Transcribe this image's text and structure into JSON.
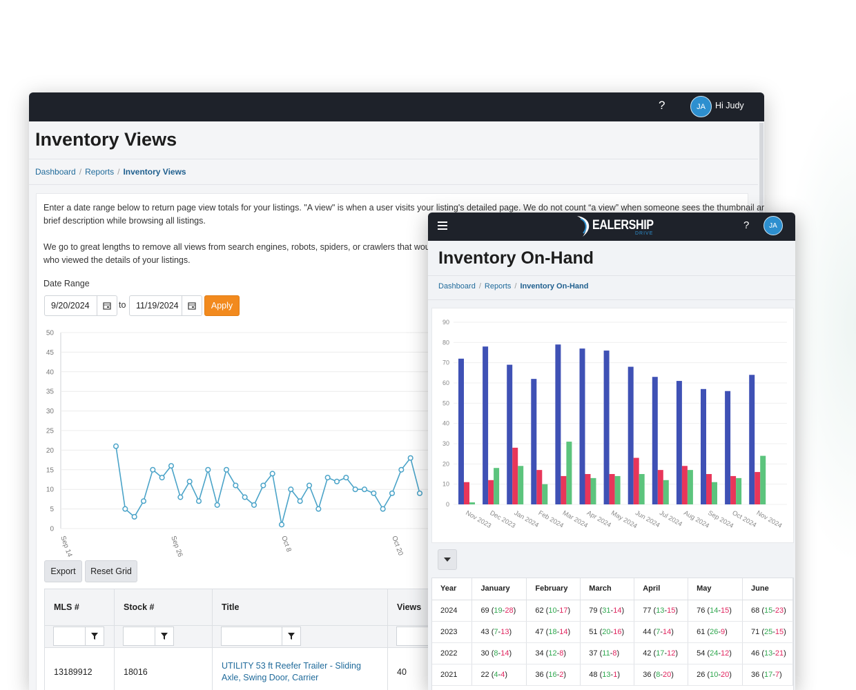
{
  "back_window": {
    "help": "?",
    "avatar": "JA",
    "greeting": "Hi Judy",
    "title": "Inventory Views",
    "breadcrumb": [
      "Dashboard",
      "Reports",
      "Inventory Views"
    ],
    "intro": [
      "Enter a date range below to return page view totals for your listings. \"A view\" is when a user visits your listing's detailed page. We do not count “a view” when someone sees the thumbnail and",
      "brief description while browsing all listings."
    ],
    "note": [
      "We go to great lengths to remove all views from search engines, robots, spiders, or crawlers that would ot",
      "who viewed the details of your listings."
    ],
    "date_range_label": "Date Range",
    "date_from": "9/20/2024",
    "date_to_label": "to",
    "date_to": "11/19/2024",
    "apply": "Apply",
    "buttons": [
      "Export",
      "Reset Grid"
    ],
    "table": {
      "columns": [
        "MLS #",
        "Stock #",
        "Title",
        "Views"
      ],
      "rows": [
        [
          13189912,
          "18016",
          "UTILITY 53 ft Reefer Trailer - Sliding Axle, Swing Door, Carrier",
          40
        ]
      ]
    }
  },
  "front_window": {
    "logo": "EALERSHIP",
    "logo_sub": "DRIVE",
    "help": "?",
    "avatar": "JA",
    "title": "Inventory On-Hand",
    "breadcrumb": [
      "Dashboard",
      "Reports",
      "Inventory On-Hand"
    ],
    "table": {
      "columns": [
        "Year",
        "January",
        "February",
        "March",
        "April",
        "May",
        "June"
      ],
      "rows": [
        [
          "2024",
          "69 (19-28)",
          "62 (10-17)",
          "79 (31-14)",
          "77 (13-15)",
          "76 (14-15)",
          "68 (15-23)"
        ],
        [
          "2023",
          "43 (7-13)",
          "47 (18-14)",
          "51 (20-16)",
          "44 (7-14)",
          "61 (26-9)",
          "71 (25-15)"
        ],
        [
          "2022",
          "30 (8-14)",
          "34 (12-8)",
          "37 (11-8)",
          "42 (17-12)",
          "54 (24-12)",
          "46 (13-21)"
        ],
        [
          "2021",
          "22 (4-4)",
          "36 (16-2)",
          "48 (13-1)",
          "36 (8-20)",
          "26 (10-20)",
          "36 (17-7)"
        ]
      ]
    }
  },
  "chart_data": [
    {
      "type": "line",
      "categories": [
        "Sep 14",
        null,
        null,
        null,
        null,
        null,
        null,
        null,
        null,
        null,
        null,
        null,
        "Sep 26",
        null,
        null,
        null,
        null,
        null,
        null,
        null,
        null,
        null,
        null,
        null,
        "Oct 8",
        null,
        null,
        null,
        null,
        null,
        null,
        null,
        null,
        null,
        null,
        null,
        "Oct 20",
        null,
        null,
        null
      ],
      "values": [
        null,
        null,
        null,
        null,
        null,
        null,
        21,
        5,
        3,
        7,
        15,
        13,
        16,
        8,
        12,
        7,
        15,
        6,
        15,
        11,
        8,
        6,
        11,
        14,
        1,
        10,
        7,
        11,
        5,
        13,
        12,
        13,
        10,
        10,
        9,
        5,
        9,
        15,
        18,
        9
      ],
      "color": "#4aa3c8",
      "ylim": [
        0,
        50
      ],
      "yticks": [
        0,
        5,
        10,
        15,
        20,
        25,
        30,
        35,
        40,
        45,
        50
      ],
      "grid": true
    },
    {
      "type": "bar",
      "categories": [
        "Nov 2023",
        "Dec 2023",
        "Jan 2024",
        "Feb 2024",
        "Mar 2024",
        "Apr 2024",
        "May 2024",
        "Jun 2024",
        "Jul 2024",
        "Aug 2024",
        "Sep 2024",
        "Oct 2024",
        "Nov 2024"
      ],
      "series": [
        {
          "color": "#3f51b5",
          "values": [
            72,
            78,
            69,
            62,
            79,
            77,
            76,
            68,
            63,
            61,
            57,
            56,
            64
          ]
        },
        {
          "color": "#e8365a",
          "values": [
            11,
            12,
            28,
            17,
            14,
            15,
            15,
            23,
            17,
            19,
            15,
            14,
            16
          ]
        },
        {
          "color": "#5cc47d",
          "values": [
            1,
            18,
            19,
            10,
            31,
            13,
            14,
            15,
            12,
            17,
            11,
            13,
            24
          ]
        }
      ],
      "ylim": [
        0,
        90
      ],
      "yticks": [
        0,
        10,
        20,
        30,
        40,
        50,
        60,
        70,
        80,
        90
      ],
      "grid": true
    }
  ]
}
